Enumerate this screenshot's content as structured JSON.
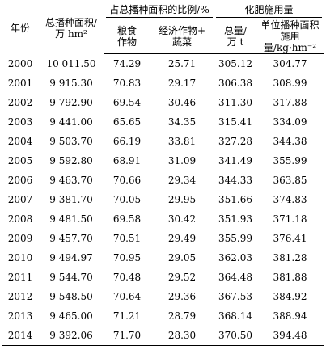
{
  "header": {
    "year": "年份",
    "area_line1": "总播种面积/",
    "area_line2": "万 hm²",
    "share_group": "占总播种面积的比例/%",
    "grain_line1": "粮食",
    "grain_line2": "作物",
    "econ_line1": "经济作物+",
    "econ_line2": "蔬菜",
    "fert_group": "化肥施用量",
    "total_line1": "总量/",
    "total_line2": "万 t",
    "unit_line1": "单位播种面积",
    "unit_line2": "施用量/kg·hm⁻²"
  },
  "rows": [
    {
      "year": "2000",
      "area": "10 011.50",
      "grain": "74.29",
      "econ": "25.71",
      "total": "305.12",
      "unit": "304.77"
    },
    {
      "year": "2001",
      "area": "9 915.30",
      "grain": "70.83",
      "econ": "29.17",
      "total": "306.38",
      "unit": "308.99"
    },
    {
      "year": "2002",
      "area": "9 792.90",
      "grain": "69.54",
      "econ": "30.46",
      "total": "311.30",
      "unit": "317.88"
    },
    {
      "year": "2003",
      "area": "9 441.00",
      "grain": "65.65",
      "econ": "34.35",
      "total": "315.41",
      "unit": "334.09"
    },
    {
      "year": "2004",
      "area": "9 503.70",
      "grain": "66.19",
      "econ": "33.81",
      "total": "327.28",
      "unit": "344.38"
    },
    {
      "year": "2005",
      "area": "9 592.80",
      "grain": "68.91",
      "econ": "31.09",
      "total": "341.49",
      "unit": "355.99"
    },
    {
      "year": "2006",
      "area": "9 463.70",
      "grain": "70.66",
      "econ": "29.34",
      "total": "344.33",
      "unit": "363.85"
    },
    {
      "year": "2007",
      "area": "9 381.70",
      "grain": "70.05",
      "econ": "29.95",
      "total": "351.66",
      "unit": "374.83"
    },
    {
      "year": "2008",
      "area": "9 481.50",
      "grain": "69.58",
      "econ": "30.42",
      "total": "351.93",
      "unit": "371.18"
    },
    {
      "year": "2009",
      "area": "9 457.70",
      "grain": "70.51",
      "econ": "29.49",
      "total": "355.99",
      "unit": "376.41"
    },
    {
      "year": "2010",
      "area": "9 494.97",
      "grain": "70.95",
      "econ": "29.05",
      "total": "362.03",
      "unit": "381.28"
    },
    {
      "year": "2011",
      "area": "9 544.70",
      "grain": "70.48",
      "econ": "29.52",
      "total": "364.48",
      "unit": "381.88"
    },
    {
      "year": "2012",
      "area": "9 548.50",
      "grain": "70.64",
      "econ": "29.36",
      "total": "367.53",
      "unit": "384.92"
    },
    {
      "year": "2013",
      "area": "9 465.00",
      "grain": "71.21",
      "econ": "28.79",
      "total": "368.14",
      "unit": "388.94"
    },
    {
      "year": "2014",
      "area": "9 392.06",
      "grain": "71.70",
      "econ": "28.30",
      "total": "370.50",
      "unit": "394.48"
    }
  ]
}
